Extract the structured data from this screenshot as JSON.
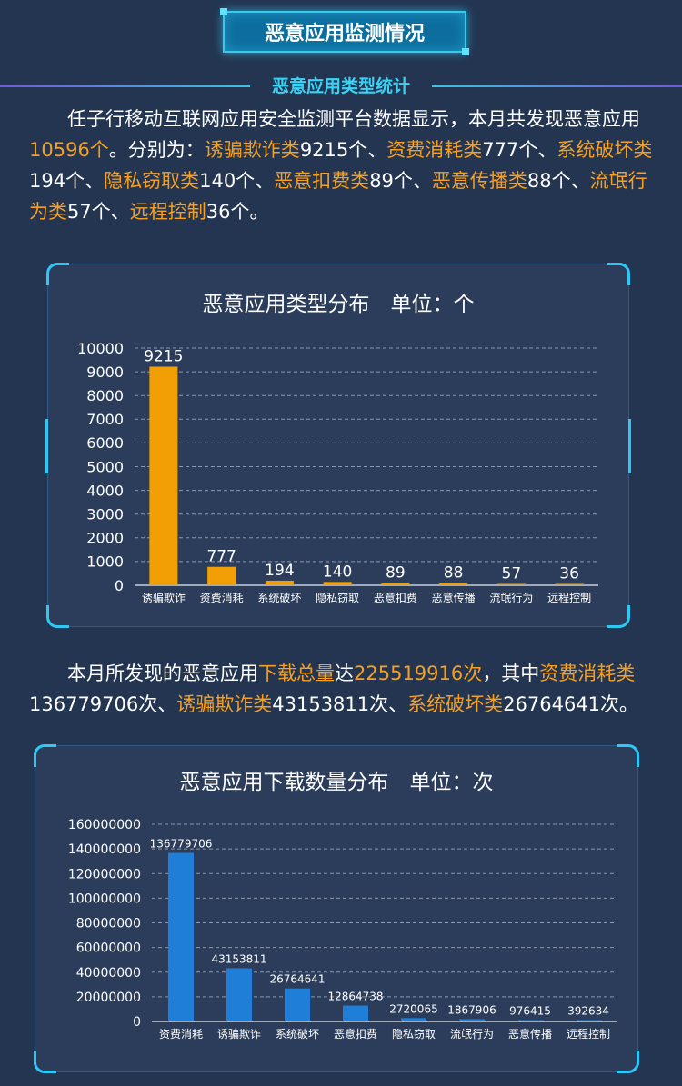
{
  "header": {
    "title": "恶意应用监测情况"
  },
  "section": {
    "subtitle": "恶意应用类型统计"
  },
  "intro": {
    "p1_a": "任子行移动互联网应用安全监测平台数据显示，本月共发现恶意应用",
    "p1_total": "10596个",
    "p1_b": "。分别为：",
    "items": [
      {
        "name": "诱骗欺诈类",
        "count": "9215个"
      },
      {
        "name": "资费消耗类",
        "count": "777个"
      },
      {
        "name": "系统破坏类",
        "count": "194个"
      },
      {
        "name": "隐私窃取类",
        "count": "140个"
      },
      {
        "name": "恶意扣费类",
        "count": "89个"
      },
      {
        "name": "恶意传播类",
        "count": "88个"
      },
      {
        "name": "流氓行为类",
        "count": "57个"
      },
      {
        "name": "远程控制",
        "count": "36个"
      }
    ],
    "sep": "、",
    "end": "。"
  },
  "download_text": {
    "a": "本月所发现的恶意应用",
    "total_label": "下载总量",
    "b": "达",
    "total_value": "225519916次",
    "c": "，其中",
    "items": [
      {
        "name": "资费消耗类",
        "count": "136779706次"
      },
      {
        "name": "诱骗欺诈类",
        "count": "43153811次"
      },
      {
        "name": "系统破坏类",
        "count": "26764641次"
      }
    ],
    "sep": "、",
    "end": "。"
  },
  "colors": {
    "bar1": "#f29f05",
    "bar2": "#1e7ed8",
    "highlight": "#f7a020",
    "accent": "#3ad3f5"
  },
  "chart_data": [
    {
      "type": "bar",
      "title": "恶意应用类型分布　单位：个",
      "categories": [
        "诱骗欺诈",
        "资费消耗",
        "系统破坏",
        "隐私窃取",
        "恶意扣费",
        "恶意传播",
        "流氓行为",
        "远程控制"
      ],
      "values": [
        9215,
        777,
        194,
        140,
        89,
        88,
        57,
        36
      ],
      "ylim": [
        0,
        10000
      ],
      "yticks": [
        0,
        1000,
        2000,
        3000,
        4000,
        5000,
        6000,
        7000,
        8000,
        9000,
        10000
      ],
      "grid": true
    },
    {
      "type": "bar",
      "title": "恶意应用下载数量分布　单位：次",
      "categories": [
        "资费消耗",
        "诱骗欺诈",
        "系统破坏",
        "恶意扣费",
        "隐私窃取",
        "流氓行为",
        "恶意传播",
        "远程控制"
      ],
      "values": [
        136779706,
        43153811,
        26764641,
        12864738,
        2720065,
        1867906,
        976415,
        392634
      ],
      "ylim": [
        0,
        160000000
      ],
      "yticks": [
        0,
        20000000,
        40000000,
        60000000,
        80000000,
        100000000,
        120000000,
        140000000,
        160000000
      ],
      "grid": true
    }
  ]
}
